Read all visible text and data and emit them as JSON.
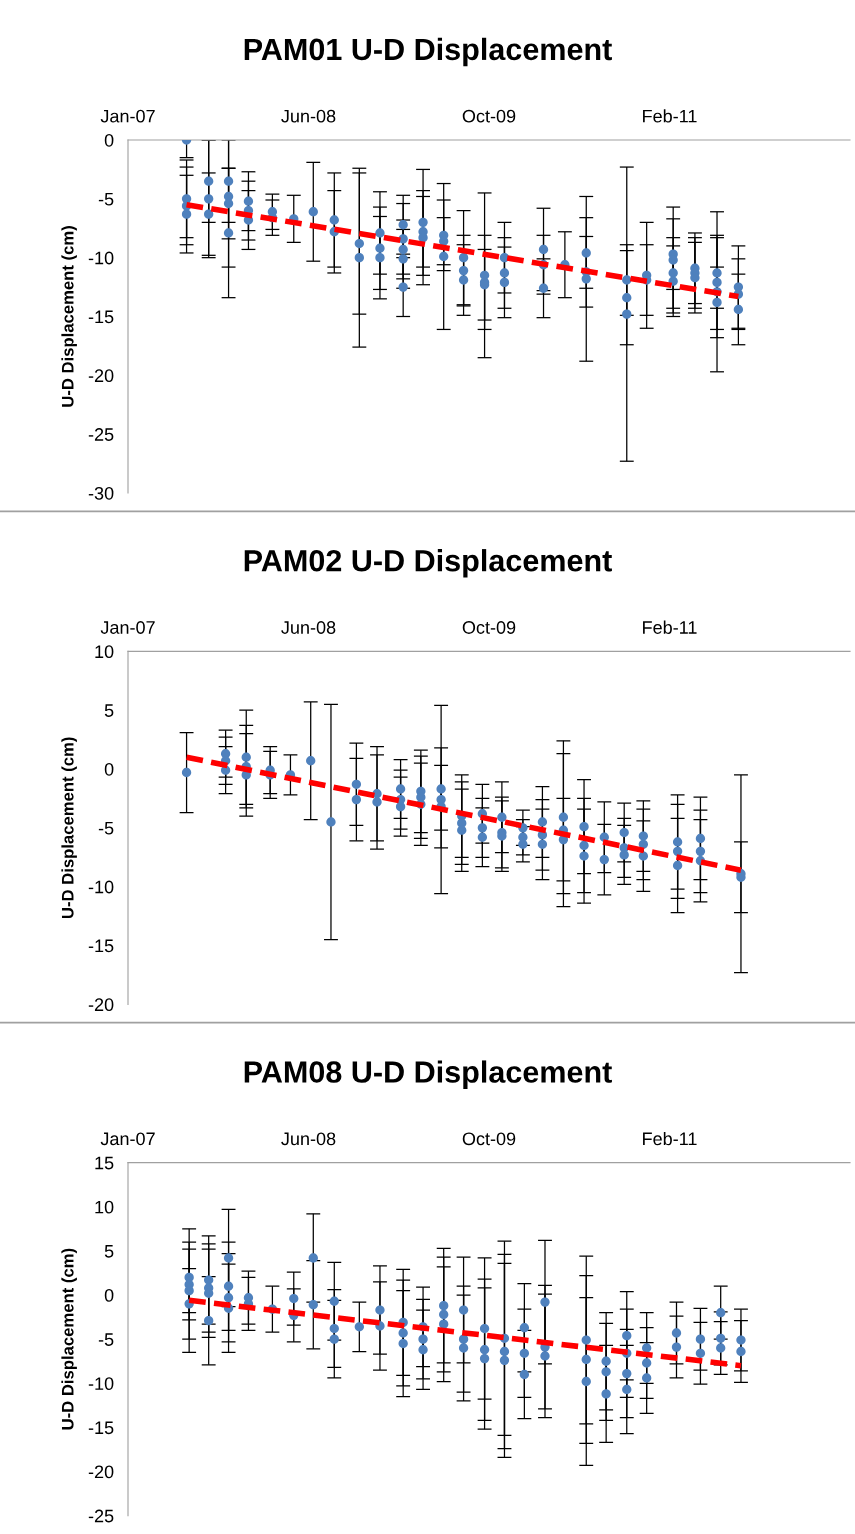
{
  "chart_data": [
    {
      "type": "scatter",
      "title": "PAM01 U-D Displacement",
      "ylabel": "U-D Displacement (cm)",
      "grid": false,
      "xlim": [
        "2007-01-31",
        "2012-06-13"
      ],
      "xticks": [
        {
          "value": "2007-01-31",
          "label": "Jan-07"
        },
        {
          "value": "2008-06-04",
          "label": "Jun-08"
        },
        {
          "value": "2009-10-07",
          "label": "Oct-09"
        },
        {
          "value": "2011-02-09",
          "label": "Feb-11"
        }
      ],
      "ylim": [
        -30,
        0
      ],
      "yticks": [
        0,
        -5,
        -10,
        -15,
        -20,
        -25,
        -30
      ],
      "series": [
        {
          "marker": "circle",
          "color": "#4f81bd",
          "x": [
            "2007-07-09",
            "2007-07-09",
            "2007-07-09",
            "2007-07-09",
            "2007-09-07",
            "2007-09-07",
            "2007-09-07",
            "2007-10-31",
            "2007-10-31",
            "2007-10-31",
            "2007-10-31",
            "2007-12-24",
            "2007-12-24",
            "2007-12-24",
            "2008-02-27",
            "2008-02-27",
            "2008-04-25",
            "2008-06-17",
            "2008-08-13",
            "2008-08-13",
            "2008-10-20",
            "2008-10-20",
            "2008-12-15",
            "2008-12-15",
            "2008-12-15",
            "2009-02-16",
            "2009-02-16",
            "2009-02-16",
            "2009-02-16",
            "2009-02-16",
            "2009-04-11",
            "2009-04-11",
            "2009-04-11",
            "2009-06-06",
            "2009-06-06",
            "2009-06-06",
            "2009-07-30",
            "2009-07-30",
            "2009-07-30",
            "2009-09-25",
            "2009-09-25",
            "2009-09-25",
            "2009-11-18",
            "2009-11-18",
            "2009-11-18",
            "2010-03-04",
            "2010-03-04",
            "2010-03-04",
            "2010-05-01",
            "2010-06-28",
            "2010-06-28",
            "2010-06-28",
            "2010-10-16",
            "2010-10-16",
            "2010-10-16",
            "2010-12-09",
            "2010-12-09",
            "2011-02-19",
            "2011-02-19",
            "2011-02-19",
            "2011-02-19",
            "2011-04-19",
            "2011-04-19",
            "2011-04-19",
            "2011-06-18",
            "2011-06-18",
            "2011-06-18",
            "2011-06-18",
            "2011-08-15",
            "2011-08-15",
            "2011-08-15"
          ],
          "values": [
            0,
            -5.0,
            -5.6,
            -6.3,
            -3.5,
            -5.0,
            -6.3,
            -3.5,
            -4.8,
            -5.4,
            -7.9,
            -5.2,
            -6.0,
            -6.8,
            -6.1,
            -6.6,
            -6.7,
            -6.1,
            -6.8,
            -7.8,
            -8.8,
            -10.0,
            -7.9,
            -9.2,
            -10.0,
            -7.2,
            -8.4,
            -9.3,
            -10.1,
            -12.5,
            -7.0,
            -7.8,
            -8.3,
            -8.1,
            -8.6,
            -9.9,
            -10.0,
            -11.1,
            -11.9,
            -11.5,
            -12.1,
            -12.3,
            -10.0,
            -11.3,
            -12.1,
            -9.3,
            -10.6,
            -12.6,
            -10.6,
            -9.6,
            -11.2,
            -11.8,
            -11.9,
            -13.4,
            -14.8,
            -11.5,
            -11.9,
            -9.7,
            -10.2,
            -11.3,
            -12.0,
            -10.9,
            -11.3,
            -11.7,
            -11.3,
            -12.1,
            -12.9,
            -13.8,
            -12.5,
            -13.1,
            -14.4
          ],
          "errors": [
            1.5,
            3.3,
            3.3,
            3.3,
            3.5,
            5,
            3.5,
            3.5,
            6,
            3,
            5.5,
            2.5,
            2.5,
            2.5,
            1.5,
            1.5,
            2,
            4.2,
            4,
            3.5,
            6,
            7.6,
            3.5,
            3.5,
            3.5,
            2.5,
            3,
            2.5,
            2.5,
            2.5,
            4.5,
            3,
            4,
            3,
            2,
            6.2,
            4,
            3,
            3,
            7,
            4,
            3,
            3,
            3,
            3,
            3.5,
            2.5,
            2.5,
            2.8,
            3,
            3,
            7,
            3,
            4,
            12.5,
            4.5,
            3,
            3,
            4.5,
            3,
            3,
            3,
            3,
            3,
            3,
            4,
            6.8,
            3,
            3.5,
            3,
            3
          ]
        },
        {
          "type": "line",
          "color": "#ff0000",
          "line_style": "dashed",
          "x": [
            "2007-07-09",
            "2011-08-15"
          ],
          "values": [
            -5.5,
            -13.3
          ]
        }
      ]
    },
    {
      "type": "scatter",
      "title": "PAM02 U-D Displacement",
      "ylabel": "U-D Displacement (cm)",
      "grid": false,
      "xlim": [
        "2007-01-31",
        "2012-06-13"
      ],
      "xticks": [
        {
          "value": "2007-01-31",
          "label": "Jan-07"
        },
        {
          "value": "2008-06-04",
          "label": "Jun-08"
        },
        {
          "value": "2009-10-07",
          "label": "Oct-09"
        },
        {
          "value": "2011-02-09",
          "label": "Feb-11"
        }
      ],
      "ylim": [
        -20,
        10
      ],
      "yticks": [
        10,
        5,
        0,
        -5,
        -10,
        -15,
        -20
      ],
      "series": [
        {
          "marker": "circle",
          "color": "#4f81bd",
          "x": [
            "2007-07-09",
            "2007-10-23",
            "2007-10-23",
            "2007-10-23",
            "2007-12-18",
            "2007-12-18",
            "2007-12-18",
            "2008-02-21",
            "2008-02-21",
            "2008-04-16",
            "2008-06-10",
            "2008-08-04",
            "2008-10-12",
            "2008-10-12",
            "2008-12-07",
            "2008-12-07",
            "2009-02-09",
            "2009-02-09",
            "2009-02-09",
            "2009-04-05",
            "2009-04-05",
            "2009-04-05",
            "2009-05-30",
            "2009-05-30",
            "2009-05-30",
            "2009-07-25",
            "2009-07-25",
            "2009-07-25",
            "2009-09-19",
            "2009-09-19",
            "2009-09-19",
            "2009-11-11",
            "2009-11-11",
            "2009-11-11",
            "2010-01-07",
            "2010-01-07",
            "2010-01-07",
            "2010-03-01",
            "2010-03-01",
            "2010-03-01",
            "2010-04-27",
            "2010-04-27",
            "2010-04-27",
            "2010-06-22",
            "2010-06-22",
            "2010-06-22",
            "2010-08-16",
            "2010-08-16",
            "2010-10-09",
            "2010-10-09",
            "2010-10-09",
            "2010-11-30",
            "2010-11-30",
            "2010-11-30",
            "2011-03-03",
            "2011-03-03",
            "2011-03-03",
            "2011-05-04",
            "2011-05-04",
            "2011-05-04",
            "2011-08-22",
            "2011-08-22"
          ],
          "values": [
            -0.3,
            1.3,
            0.7,
            -0.1,
            1.0,
            0.2,
            -0.5,
            -0.1,
            -0.5,
            -0.5,
            0.7,
            -4.5,
            -1.3,
            -2.6,
            -2.1,
            -2.8,
            -1.7,
            -2.6,
            -3.2,
            -1.9,
            -2.4,
            -3.0,
            -1.7,
            -2.6,
            -3.2,
            -4.0,
            -4.6,
            -5.2,
            -3.8,
            -5.0,
            -5.8,
            -4.1,
            -5.4,
            -5.7,
            -5.0,
            -5.8,
            -6.4,
            -4.5,
            -5.6,
            -6.4,
            -4.1,
            -5.2,
            -6.0,
            -4.9,
            -6.5,
            -7.4,
            -5.8,
            -7.7,
            -5.4,
            -6.7,
            -7.3,
            -5.7,
            -6.4,
            -7.4,
            -6.2,
            -7.0,
            -8.2,
            -5.9,
            -7.0,
            -7.8,
            -8.9,
            -9.2
          ],
          "errors": [
            3.4,
            2,
            2,
            2,
            4,
            3.5,
            3.5,
            2,
            2,
            1.7,
            5,
            10,
            3.5,
            3.5,
            4,
            4,
            2.5,
            2.5,
            2.5,
            3.5,
            3.5,
            3.5,
            3.5,
            8,
            3.5,
            3.5,
            3.5,
            3.5,
            2.5,
            2.5,
            2.5,
            3,
            3,
            3,
            1.5,
            1.5,
            1.5,
            3,
            3,
            3,
            6.5,
            6.5,
            3.5,
            4,
            4,
            4,
            3,
            3,
            2.5,
            2.5,
            2.5,
            3,
            3,
            3,
            4,
            4,
            4,
            3.5,
            3.5,
            3.5,
            8.4,
            3
          ]
        },
        {
          "type": "line",
          "color": "#ff0000",
          "line_style": "dashed",
          "x": [
            "2007-07-09",
            "2011-08-22"
          ],
          "values": [
            1.0,
            -8.6
          ]
        }
      ]
    },
    {
      "type": "scatter",
      "title": "PAM08 U-D Displacement",
      "ylabel": "U-D Displacement (cm)",
      "grid": false,
      "xlim": [
        "2007-01-31",
        "2012-06-13"
      ],
      "xticks": [
        {
          "value": "2007-01-31",
          "label": "Jan-07"
        },
        {
          "value": "2008-06-04",
          "label": "Jun-08"
        },
        {
          "value": "2009-10-07",
          "label": "Oct-09"
        },
        {
          "value": "2011-02-09",
          "label": "Feb-11"
        }
      ],
      "ylim": [
        -25,
        15
      ],
      "yticks": [
        15,
        10,
        5,
        0,
        -5,
        -10,
        -15,
        -20,
        -25
      ],
      "series": [
        {
          "marker": "circle",
          "color": "#4f81bd",
          "x": [
            "2007-07-16",
            "2007-07-16",
            "2007-07-16",
            "2007-07-16",
            "2007-09-07",
            "2007-09-07",
            "2007-09-07",
            "2007-09-07",
            "2007-10-31",
            "2007-10-31",
            "2007-10-31",
            "2007-10-31",
            "2007-12-24",
            "2007-12-24",
            "2008-02-27",
            "2008-04-25",
            "2008-04-25",
            "2008-06-17",
            "2008-06-17",
            "2008-08-13",
            "2008-08-13",
            "2008-08-13",
            "2008-10-20",
            "2008-12-15",
            "2008-12-15",
            "2009-02-16",
            "2009-02-16",
            "2009-02-16",
            "2009-04-11",
            "2009-04-11",
            "2009-04-11",
            "2009-06-06",
            "2009-06-06",
            "2009-06-06",
            "2009-07-30",
            "2009-07-30",
            "2009-07-30",
            "2009-09-25",
            "2009-09-25",
            "2009-09-25",
            "2009-11-18",
            "2009-11-18",
            "2009-11-18",
            "2010-01-11",
            "2010-01-11",
            "2010-01-11",
            "2010-03-08",
            "2010-03-08",
            "2010-03-08",
            "2010-06-28",
            "2010-06-28",
            "2010-06-28",
            "2010-08-21",
            "2010-08-21",
            "2010-08-21",
            "2010-10-16",
            "2010-10-16",
            "2010-10-16",
            "2010-10-16",
            "2010-12-09",
            "2010-12-09",
            "2010-12-09",
            "2011-02-28",
            "2011-02-28",
            "2011-05-04",
            "2011-05-04",
            "2011-06-28",
            "2011-06-28",
            "2011-06-28",
            "2011-08-22",
            "2011-08-22"
          ],
          "values": [
            2.0,
            1.2,
            0.5,
            -1.0,
            1.7,
            0.8,
            0.2,
            -2.9,
            4.2,
            1.0,
            -0.3,
            -1.5,
            -0.3,
            -1.0,
            -1.6,
            -0.4,
            -2.3,
            4.2,
            -1.1,
            -0.7,
            -3.8,
            -5.0,
            -3.6,
            -1.7,
            -3.5,
            -3.1,
            -4.3,
            -5.5,
            -3.6,
            -5.0,
            -6.2,
            -1.2,
            -2.2,
            -3.3,
            -1.7,
            -5.0,
            -6.0,
            -3.8,
            -6.2,
            -7.2,
            -4.9,
            -6.4,
            -7.4,
            -3.7,
            -6.6,
            -9.0,
            -0.8,
            -5.9,
            -6.9,
            -5.1,
            -7.3,
            -9.8,
            -7.5,
            -8.7,
            -11.2,
            -4.6,
            -6.6,
            -8.9,
            -10.7,
            -6.0,
            -7.7,
            -9.4,
            -4.3,
            -5.9,
            -5.0,
            -6.6,
            -2.0,
            -4.9,
            -6.0,
            -5.1,
            -6.4
          ],
          "errors": [
            4,
            4,
            7,
            4,
            5,
            5,
            5,
            5,
            5.5,
            5,
            5,
            5,
            3,
            3,
            2.6,
            3,
            3,
            5,
            5,
            4.4,
            4.4,
            4.4,
            2.8,
            5,
            5,
            6,
            6,
            6,
            4.5,
            4.5,
            4.5,
            6.5,
            6.5,
            6.5,
            6,
            6,
            6,
            8,
            8,
            8,
            11,
            11,
            11,
            5,
            5,
            5,
            7,
            7,
            7,
            9.5,
            9.5,
            9.5,
            5.5,
            5.5,
            5.5,
            5,
            5,
            5,
            5,
            4,
            4,
            4,
            3.5,
            3.5,
            3.5,
            3.5,
            3,
            3,
            3,
            3.5,
            3.5
          ]
        },
        {
          "type": "line",
          "color": "#ff0000",
          "line_style": "dashed",
          "x": [
            "2007-07-16",
            "2011-08-22"
          ],
          "values": [
            -0.6,
            -8.0
          ]
        }
      ]
    }
  ]
}
